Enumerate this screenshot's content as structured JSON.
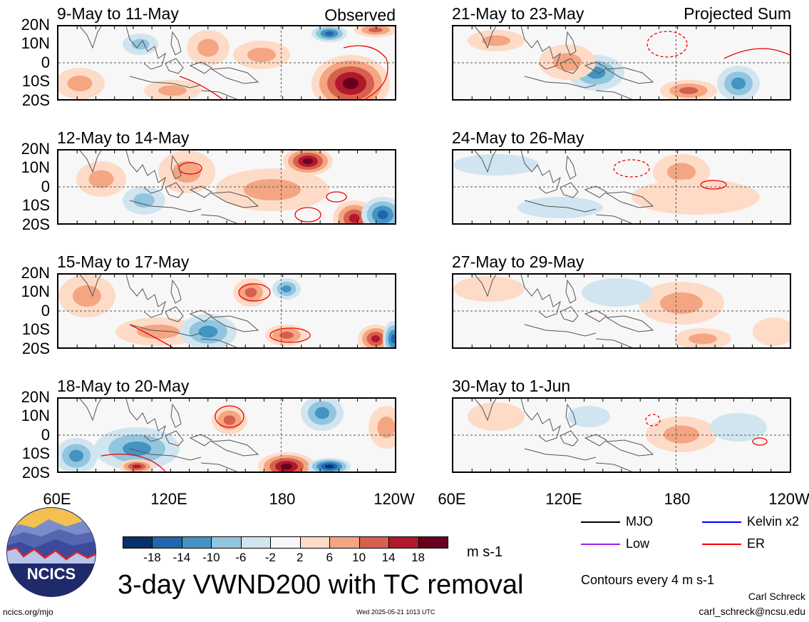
{
  "figure": {
    "title": "3-day VWND200 with TC removal",
    "left_tag": "Observed",
    "right_tag": "Projected Sum",
    "units": "m s-1",
    "contour_note": "Contours every 4 m s-1",
    "author": "Carl Schreck",
    "email": "carl_schreck@ncsu.edu",
    "site": "ncics.org/mjo",
    "timestamp": "Wed 2025-05-21 1013 UTC",
    "logo_text": "NCICS"
  },
  "panels": {
    "left": [
      {
        "label": "9-May to 11-May"
      },
      {
        "label": "12-May to 14-May"
      },
      {
        "label": "15-May to 17-May"
      },
      {
        "label": "18-May to 20-May"
      }
    ],
    "right": [
      {
        "label": "21-May to 23-May"
      },
      {
        "label": "24-May to 26-May"
      },
      {
        "label": "27-May to 29-May"
      },
      {
        "label": "30-May to 1-Jun"
      }
    ]
  },
  "axes": {
    "lat_ticks": [
      "20N",
      "10N",
      "0",
      "10S",
      "20S"
    ],
    "lon_ticks": [
      "60E",
      "120E",
      "180",
      "120W"
    ]
  },
  "colorbar": {
    "labels": [
      "-18",
      "-14",
      "-10",
      "-6",
      "-2",
      "2",
      "6",
      "10",
      "14",
      "18"
    ],
    "colors": [
      "#08306b",
      "#2166ac",
      "#4393c3",
      "#92c5de",
      "#d1e5f0",
      "#f7f7f7",
      "#fddbc7",
      "#f4a582",
      "#d6604d",
      "#b2182b",
      "#67001f"
    ]
  },
  "legend": {
    "items": [
      {
        "label": "MJO",
        "color": "#000000"
      },
      {
        "label": "Kelvin x2",
        "color": "#0000ff"
      },
      {
        "label": "Low",
        "color": "#a020f0"
      },
      {
        "label": "ER",
        "color": "#ff0000"
      }
    ]
  }
}
